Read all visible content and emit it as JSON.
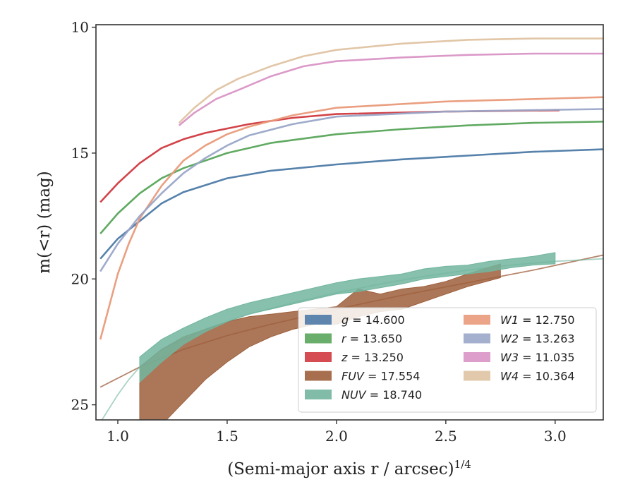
{
  "chart_data": {
    "type": "line",
    "xlabel": "(Semi-major axis r / arcsec)",
    "xlabel_exponent": "1/4",
    "ylabel": "m(<r) (mag)",
    "xlim": [
      0.9,
      3.22
    ],
    "ylim": [
      25.6,
      9.9
    ],
    "y_inverted": true,
    "x_ticks": [
      "1.0",
      "1.5",
      "2.0",
      "2.5",
      "3.0"
    ],
    "y_ticks": [
      "10",
      "15",
      "20",
      "25"
    ],
    "grid": false,
    "legend_position": "lower-right",
    "series": [
      {
        "band": "g",
        "value": "14.600",
        "color": "#4c7aa6",
        "kind": "line",
        "x": [
          0.92,
          1.0,
          1.1,
          1.2,
          1.3,
          1.5,
          1.7,
          2.0,
          2.3,
          2.6,
          2.9,
          3.22
        ],
        "y": [
          19.2,
          18.4,
          17.7,
          17.0,
          16.55,
          16.0,
          15.7,
          15.45,
          15.25,
          15.1,
          14.95,
          14.85
        ]
      },
      {
        "band": "r",
        "value": "13.650",
        "color": "#59a55a",
        "kind": "line",
        "x": [
          0.92,
          1.0,
          1.1,
          1.2,
          1.3,
          1.5,
          1.7,
          2.0,
          2.3,
          2.6,
          2.9,
          3.22
        ],
        "y": [
          18.2,
          17.4,
          16.6,
          16.0,
          15.6,
          15.0,
          14.6,
          14.25,
          14.05,
          13.9,
          13.8,
          13.75
        ]
      },
      {
        "band": "z",
        "value": "13.250",
        "color": "#d0393f",
        "kind": "line",
        "x": [
          0.92,
          1.0,
          1.1,
          1.2,
          1.3,
          1.4,
          1.6,
          1.8,
          2.0,
          2.5,
          3.02
        ],
        "y": [
          16.95,
          16.2,
          15.4,
          14.8,
          14.45,
          14.2,
          13.85,
          13.6,
          13.45,
          13.35,
          13.3
        ]
      },
      {
        "band": "FUV",
        "value": "17.554",
        "color": "#9e5f3c",
        "kind": "band",
        "x": [
          1.1,
          1.2,
          1.3,
          1.4,
          1.5,
          1.6,
          1.7,
          1.8,
          1.9,
          2.0,
          2.1,
          2.2,
          2.3,
          2.4,
          2.5,
          2.6,
          2.75
        ],
        "y_upper": [
          23.5,
          22.8,
          22.3,
          22.0,
          21.7,
          21.5,
          21.4,
          21.3,
          21.2,
          21.1,
          20.4,
          20.6,
          20.4,
          20.3,
          20.1,
          19.8,
          19.4
        ],
        "y_lower": [
          26.0,
          25.8,
          24.9,
          24.0,
          23.3,
          22.7,
          22.3,
          22.0,
          21.8,
          21.8,
          21.5,
          21.3,
          21.2,
          20.9,
          20.6,
          20.3,
          19.95
        ]
      },
      {
        "band": "NUV",
        "value": "18.740",
        "color": "#72b59f",
        "kind": "band",
        "x": [
          1.1,
          1.2,
          1.3,
          1.4,
          1.5,
          1.6,
          1.7,
          1.8,
          1.9,
          2.0,
          2.1,
          2.2,
          2.3,
          2.4,
          2.5,
          2.6,
          2.7,
          2.8,
          2.9,
          3.0
        ],
        "y_upper": [
          23.1,
          22.4,
          21.95,
          21.55,
          21.2,
          20.95,
          20.75,
          20.55,
          20.35,
          20.15,
          20.0,
          19.9,
          19.8,
          19.6,
          19.5,
          19.45,
          19.3,
          19.2,
          19.1,
          18.95
        ],
        "y_lower": [
          24.1,
          23.3,
          22.6,
          22.1,
          21.7,
          21.4,
          21.2,
          21.0,
          20.8,
          20.6,
          20.5,
          20.35,
          20.2,
          20.0,
          19.9,
          19.8,
          19.7,
          19.55,
          19.45,
          19.4
        ]
      },
      {
        "band": "W1",
        "value": "12.750",
        "color": "#e99a7a",
        "kind": "line",
        "x": [
          0.92,
          1.0,
          1.05,
          1.1,
          1.2,
          1.3,
          1.4,
          1.5,
          1.6,
          1.8,
          2.0,
          2.5,
          3.0,
          3.22
        ],
        "y": [
          22.4,
          19.8,
          18.6,
          17.6,
          16.3,
          15.3,
          14.7,
          14.25,
          13.95,
          13.5,
          13.2,
          12.95,
          12.83,
          12.78
        ]
      },
      {
        "band": "W2",
        "value": "13.263",
        "color": "#9aa7c8",
        "kind": "line",
        "x": [
          0.92,
          1.0,
          1.1,
          1.2,
          1.3,
          1.4,
          1.5,
          1.6,
          1.8,
          2.0,
          2.5,
          3.0,
          3.22
        ],
        "y": [
          19.7,
          18.6,
          17.5,
          16.6,
          15.8,
          15.2,
          14.7,
          14.3,
          13.85,
          13.55,
          13.35,
          13.28,
          13.25
        ]
      },
      {
        "band": "W3",
        "value": "11.035",
        "color": "#d993c5",
        "kind": "line",
        "x": [
          1.28,
          1.35,
          1.45,
          1.55,
          1.7,
          1.85,
          2.0,
          2.3,
          2.6,
          2.9,
          3.22
        ],
        "y": [
          13.9,
          13.4,
          12.85,
          12.5,
          11.95,
          11.55,
          11.35,
          11.2,
          11.1,
          11.05,
          11.05
        ]
      },
      {
        "band": "W4",
        "value": "10.364",
        "color": "#dfc3a2",
        "kind": "line",
        "x": [
          1.28,
          1.35,
          1.45,
          1.55,
          1.7,
          1.85,
          2.0,
          2.3,
          2.6,
          2.9,
          3.22
        ],
        "y": [
          13.8,
          13.2,
          12.5,
          12.05,
          11.55,
          11.15,
          10.9,
          10.65,
          10.5,
          10.45,
          10.45
        ]
      }
    ],
    "extra_lines": [
      {
        "color": "#9e5f3c",
        "opacity": 0.75,
        "x": [
          0.92,
          1.1,
          1.3,
          1.5,
          1.7,
          2.0,
          2.3,
          2.6,
          2.9,
          3.22
        ],
        "y": [
          24.3,
          23.5,
          22.8,
          22.25,
          21.8,
          21.2,
          20.65,
          20.15,
          19.65,
          19.05
        ]
      },
      {
        "color": "#72b59f",
        "opacity": 0.6,
        "x": [
          0.92,
          1.0,
          1.05,
          1.1,
          1.2,
          1.4,
          1.6,
          1.8,
          2.0,
          2.2,
          2.4,
          2.6,
          2.8,
          3.0,
          3.22
        ],
        "y": [
          25.7,
          24.6,
          24.0,
          23.5,
          22.8,
          22.0,
          21.4,
          20.95,
          20.55,
          20.2,
          19.9,
          19.65,
          19.45,
          19.3,
          19.2
        ]
      }
    ],
    "legend": {
      "column1": [
        {
          "band": "g",
          "value": "14.600",
          "color": "#4c7aa6"
        },
        {
          "band": "r",
          "value": "13.650",
          "color": "#59a55a"
        },
        {
          "band": "z",
          "value": "13.250",
          "color": "#d0393f"
        },
        {
          "band": "FUV",
          "value": "17.554",
          "color": "#9e5f3c"
        },
        {
          "band": "NUV",
          "value": "18.740",
          "color": "#72b59f"
        }
      ],
      "column2": [
        {
          "band": "W1",
          "value": "12.750",
          "color": "#e99a7a"
        },
        {
          "band": "W2",
          "value": "13.263",
          "color": "#9aa7c8"
        },
        {
          "band": "W3",
          "value": "11.035",
          "color": "#d993c5"
        },
        {
          "band": "W4",
          "value": "10.364",
          "color": "#dfc3a2"
        }
      ]
    }
  }
}
